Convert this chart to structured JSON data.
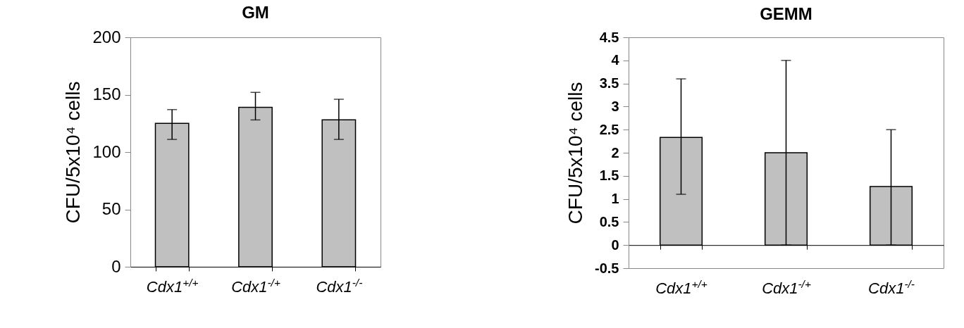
{
  "chart_data": [
    {
      "type": "bar",
      "title": "GM",
      "ylabel": "CFU/5x10⁴ cells",
      "categories": [
        "Cdx1$^{+/+}$",
        "Cdx1$^{-/+}$",
        "Cdx1$^{-/-}$"
      ],
      "values": [
        125,
        139,
        128
      ],
      "errors": [
        [
          111,
          137
        ],
        [
          128,
          152
        ],
        [
          111,
          146
        ]
      ],
      "color": "#c0c0c0",
      "ylim": [
        0,
        200
      ],
      "yticks": [
        0,
        50,
        100,
        150,
        200
      ],
      "grid": false
    },
    {
      "type": "bar",
      "title": "GEMM",
      "ylabel": "CFU/5x10⁴ cells",
      "categories": [
        "Cdx1$^{+/+}$",
        "Cdx1$^{-/+}$",
        "Cdx1$^{-/-}$"
      ],
      "values": [
        2.33,
        2.0,
        1.27
      ],
      "errors": [
        [
          1.1,
          3.6
        ],
        [
          0,
          4
        ],
        [
          0,
          2.5
        ]
      ],
      "color": "#c0c0c0",
      "ylim": [
        -0.5,
        4.5
      ],
      "yticks": [
        -0.5,
        0,
        0.5,
        1,
        1.5,
        2,
        2.5,
        3,
        3.5,
        4,
        4.5
      ],
      "grid": false
    }
  ]
}
